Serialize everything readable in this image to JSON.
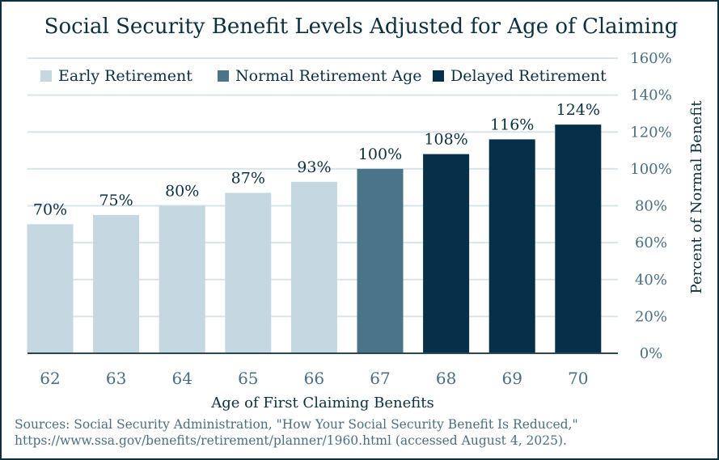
{
  "chart_data": {
    "type": "bar",
    "title": "Social Security Benefit Levels Adjusted for Age of Claiming",
    "xlabel": "Age of First Claiming Benefits",
    "ylabel": "Percent of Normal Benefit",
    "ylim": [
      0,
      160
    ],
    "yticks": [
      "0%",
      "20%",
      "40%",
      "60%",
      "80%",
      "100%",
      "120%",
      "140%",
      "160%"
    ],
    "categories": [
      "62",
      "63",
      "64",
      "65",
      "66",
      "67",
      "68",
      "69",
      "70"
    ],
    "values": [
      70,
      75,
      80,
      87,
      93,
      100,
      108,
      116,
      124
    ],
    "value_labels": [
      "70%",
      "75%",
      "80%",
      "87%",
      "93%",
      "100%",
      "108%",
      "116%",
      "124%"
    ],
    "groups": [
      0,
      0,
      0,
      0,
      0,
      1,
      2,
      2,
      2
    ],
    "legend": [
      {
        "label": "Early Retirement",
        "color": "#c5d7e0"
      },
      {
        "label": "Normal Retirement Age",
        "color": "#4a7589"
      },
      {
        "label": "Delayed Retirement",
        "color": "#06304a"
      }
    ],
    "legend_position": "top-left",
    "grid": true
  },
  "colors": {
    "text": "#0c3040",
    "tick": "#4a6f82",
    "grid": "#d9e4ea",
    "axis": "#2c4652"
  },
  "sources_line1": "Sources: Social Security Administration, \"How Your Social Security Benefit Is Reduced,\"",
  "sources_line2": "https://www.ssa.gov/benefits/retirement/planner/1960.html (accessed August 4, 2025)."
}
